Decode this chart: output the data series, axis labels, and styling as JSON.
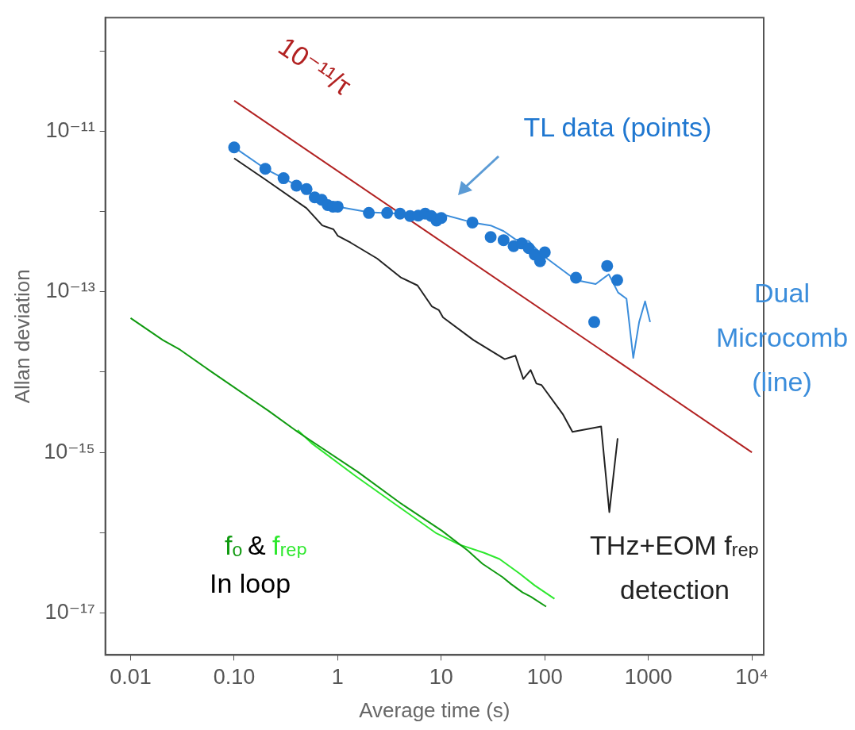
{
  "chart_data": {
    "type": "line",
    "xlabel": "Average time (s)",
    "ylabel": "Allan deviation",
    "log": "xy",
    "grid": false,
    "legend": false,
    "xlim": [
      0.0057,
      13000
    ],
    "ylim": [
      3.3e-18,
      2.6e-10
    ],
    "xticks": [
      0.01,
      {
        "value": 0.1,
        "label": "0.10"
      },
      1,
      10,
      100,
      1000,
      {
        "value": 10000,
        "label": "10⁴"
      }
    ],
    "yticks": [
      {
        "value": 1e-17,
        "label": "10⁻¹⁷"
      },
      {
        "value": 1e-16,
        "label": null
      },
      {
        "value": 1e-15,
        "label": "10⁻¹⁵"
      },
      {
        "value": 1e-14,
        "label": null
      },
      {
        "value": 1e-13,
        "label": "10⁻¹³"
      },
      {
        "value": 1e-12,
        "label": null
      },
      {
        "value": 1e-11,
        "label": "10⁻¹¹"
      },
      {
        "value": 1e-10,
        "label": null
      }
    ],
    "annotations": [
      "&",
      "In loop"
    ],
    "series": [
      {
        "name": "TL data (points)",
        "type": "scatter",
        "marker": "circle",
        "color": "#1f77d0",
        "x": [
          0.1,
          0.2,
          0.3,
          0.4,
          0.5,
          0.6,
          0.7,
          0.8,
          0.9,
          1,
          2,
          3,
          4,
          5,
          6,
          7,
          8,
          9,
          10,
          20,
          30,
          40,
          50,
          60,
          70,
          80,
          90,
          100,
          200,
          300,
          400,
          500
        ],
        "values": [
          6.3e-12,
          3.4e-12,
          2.6e-12,
          2.1e-12,
          1.9e-12,
          1.5e-12,
          1.4e-12,
          1.2e-12,
          1.15e-12,
          1.15e-12,
          9.6e-13,
          9.6e-13,
          9.4e-13,
          8.8e-13,
          8.9e-13,
          9.4e-13,
          8.8e-13,
          7.7e-13,
          8.3e-13,
          7.3e-13,
          4.8e-13,
          4.4e-13,
          3.7e-13,
          4e-13,
          3.5e-13,
          2.9e-13,
          2.4e-13,
          3.1e-13,
          1.5e-13,
          4.2e-14,
          2.1e-13,
          1.4e-13
        ]
      },
      {
        "name": "Dual Microcomb (line)",
        "type": "line",
        "color": "#3b8ddb",
        "x": [
          0.1,
          0.2,
          0.3,
          0.5,
          0.7,
          1,
          2,
          5,
          10,
          20,
          30,
          40,
          52,
          70,
          81,
          97,
          200,
          310,
          415,
          510,
          615,
          715,
          815,
          930,
          1040
        ],
        "values": [
          6.3e-12,
          3.4e-12,
          2.6e-12,
          1.8e-12,
          1.35e-12,
          1.15e-12,
          9.8e-13,
          9.3e-13,
          9.3e-13,
          7.3e-13,
          6.7e-13,
          5.7e-13,
          4.5e-13,
          4.3e-13,
          3.5e-13,
          2.8e-13,
          1.4e-13,
          1.25e-13,
          1.65e-13,
          9.8e-14,
          8.2e-14,
          1.5e-14,
          4.2e-14,
          7.6e-14,
          4.2e-14
        ]
      },
      {
        "name": "THz+EOM fᵣₑₚ detection",
        "type": "line",
        "color": "#222222",
        "x": [
          0.1,
          0.2,
          0.5,
          0.71,
          0.91,
          1,
          1.33,
          2.4,
          4.1,
          5.9,
          8.1,
          9.5,
          10.4,
          20.5,
          41,
          52,
          62,
          73,
          83,
          93,
          149,
          185,
          350,
          420,
          505
        ],
        "values": [
          4.6e-12,
          2.5e-12,
          1.1e-12,
          6.7e-13,
          6e-13,
          5e-13,
          4.1e-13,
          2.6e-13,
          1.5e-13,
          1.2e-13,
          6.6e-14,
          5.9e-14,
          4.8e-14,
          2.5e-14,
          1.45e-14,
          1.6e-14,
          8.2e-15,
          1.06e-14,
          7.2e-15,
          6.9e-15,
          3e-15,
          1.8e-15,
          2.1e-15,
          1.8e-16,
          1.5e-15
        ]
      },
      {
        "name": "fₒ",
        "type": "line",
        "color": "#109a10",
        "x": [
          0.01,
          0.0205,
          0.03,
          0.059,
          0.214,
          0.41,
          1.57,
          4.1,
          10.2,
          18,
          25,
          39,
          47,
          61,
          73,
          103
        ],
        "values": [
          4.7e-14,
          2.5e-14,
          1.9e-14,
          1.03e-14,
          3.3e-15,
          1.8e-15,
          5.7e-16,
          2.3e-16,
          1.05e-16,
          6e-17,
          4.1e-17,
          2.8e-17,
          2.3e-17,
          1.8e-17,
          1.6e-17,
          1.2e-17
        ]
      },
      {
        "name": "fᵣₑₚ",
        "type": "line",
        "color": "#2ee82e",
        "x": [
          0.41,
          0.56,
          1.48,
          3.9,
          9.0,
          15,
          26,
          36.5,
          57,
          80,
          124
        ],
        "values": [
          1.9e-15,
          1.3e-15,
          5.1e-16,
          2.1e-16,
          9.8e-17,
          7.1e-17,
          5.6e-17,
          4.7e-17,
          3.1e-17,
          2.2e-17,
          1.5e-17
        ]
      },
      {
        "name": "10⁻¹¹/τ",
        "type": "line",
        "color": "#b22222",
        "x": [
          0.1,
          10000
        ],
        "values": [
          2.4e-11,
          1e-15
        ]
      }
    ]
  }
}
